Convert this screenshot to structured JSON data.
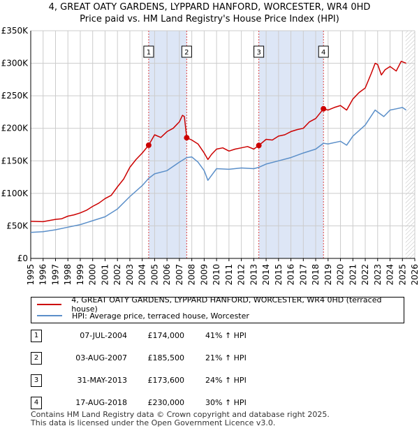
{
  "title_line1": "4, GREAT OATY GARDENS, LYPPARD HANFORD, WORCESTER, WR4 0HD",
  "title_line2": "Price paid vs. HM Land Registry's House Price Index (HPI)",
  "legend": {
    "property_label": "4, GREAT OATY GARDENS, LYPPARD HANFORD, WORCESTER, WR4 0HD (terraced house)",
    "hpi_label": "HPI: Average price, terraced house, Worcester"
  },
  "sales": [
    {
      "num": "1",
      "date": "07-JUL-2004",
      "price": "£174,000",
      "hpi": "41% ↑ HPI"
    },
    {
      "num": "2",
      "date": "03-AUG-2007",
      "price": "£185,500",
      "hpi": "21% ↑ HPI"
    },
    {
      "num": "3",
      "date": "31-MAY-2013",
      "price": "£173,600",
      "hpi": "24% ↑ HPI"
    },
    {
      "num": "4",
      "date": "17-AUG-2018",
      "price": "£230,000",
      "hpi": "30% ↑ HPI"
    }
  ],
  "footer_line1": "Contains HM Land Registry data © Crown copyright and database right 2025.",
  "footer_line2": "This data is licensed under the Open Government Licence v3.0.",
  "chart_data": {
    "type": "line",
    "title": "4, GREAT OATY GARDENS, LYPPARD HANFORD, WORCESTER, WR4 0HD — Price paid vs. HM Land Registry's House Price Index (HPI)",
    "xlabel": "",
    "ylabel": "",
    "xlim": [
      1995,
      2026
    ],
    "ylim": [
      0,
      350000
    ],
    "y_ticks": [
      {
        "value": 0,
        "label": "£0"
      },
      {
        "value": 50000,
        "label": "£50K"
      },
      {
        "value": 100000,
        "label": "£100K"
      },
      {
        "value": 150000,
        "label": "£150K"
      },
      {
        "value": 200000,
        "label": "£200K"
      },
      {
        "value": 250000,
        "label": "£250K"
      },
      {
        "value": 300000,
        "label": "£300K"
      },
      {
        "value": 350000,
        "label": "£350K"
      }
    ],
    "x_ticks": [
      1995,
      1996,
      1997,
      1998,
      1999,
      2000,
      2001,
      2002,
      2003,
      2004,
      2005,
      2006,
      2007,
      2008,
      2009,
      2010,
      2011,
      2012,
      2013,
      2014,
      2015,
      2016,
      2017,
      2018,
      2019,
      2020,
      2021,
      2022,
      2023,
      2024,
      2025,
      2026
    ],
    "grid": true,
    "colors": {
      "property": "#cc0000",
      "hpi": "#5b8fc9",
      "shade": "#dde6f6",
      "marker_line": "#dd4444",
      "axis": "#000000",
      "grid": "#cccccc"
    },
    "shaded_ranges": [
      [
        2004.52,
        2007.59
      ],
      [
        2013.41,
        2018.63
      ]
    ],
    "hatched_from": 2025.25,
    "series": [
      {
        "name": "4, GREAT OATY GARDENS, LYPPARD HANFORD, WORCESTER, WR4 0HD (terraced house)",
        "x": [
          1995.0,
          1996.0,
          1997.0,
          1997.5,
          1998.0,
          1998.5,
          1999.0,
          1999.5,
          2000.0,
          2000.5,
          2001.0,
          2001.5,
          2002.0,
          2002.5,
          2003.0,
          2003.5,
          2004.0,
          2004.52,
          2005.0,
          2005.5,
          2006.0,
          2006.5,
          2007.0,
          2007.25,
          2007.4,
          2007.59,
          2008.0,
          2008.5,
          2009.0,
          2009.3,
          2009.6,
          2010.0,
          2010.5,
          2011.0,
          2011.5,
          2012.0,
          2012.5,
          2013.0,
          2013.41,
          2014.0,
          2014.5,
          2015.0,
          2015.5,
          2016.0,
          2016.5,
          2017.0,
          2017.5,
          2018.0,
          2018.63,
          2019.0,
          2019.5,
          2020.0,
          2020.5,
          2021.0,
          2021.5,
          2022.0,
          2022.5,
          2022.8,
          2023.0,
          2023.3,
          2023.6,
          2024.0,
          2024.5,
          2024.9,
          2025.3
        ],
        "y": [
          57000,
          56500,
          60000,
          61000,
          65000,
          67000,
          70000,
          74000,
          80000,
          85000,
          92000,
          97000,
          110000,
          122000,
          140000,
          152000,
          162000,
          174000,
          190000,
          186000,
          195000,
          200000,
          210000,
          220000,
          218000,
          185500,
          182000,
          176000,
          162000,
          152000,
          160000,
          168000,
          170000,
          165000,
          168000,
          170000,
          172000,
          168000,
          173600,
          183000,
          182000,
          188000,
          190000,
          195000,
          198000,
          200000,
          210000,
          215000,
          230000,
          228000,
          232000,
          235000,
          228000,
          245000,
          255000,
          262000,
          285000,
          300000,
          298000,
          282000,
          290000,
          295000,
          288000,
          303000,
          300000
        ]
      },
      {
        "name": "HPI: Average price, terraced house, Worcester",
        "x": [
          1995.0,
          1996.0,
          1997.0,
          1998.0,
          1999.0,
          2000.0,
          2001.0,
          2002.0,
          2003.0,
          2004.0,
          2004.52,
          2005.0,
          2006.0,
          2007.0,
          2007.59,
          2008.0,
          2008.5,
          2009.0,
          2009.3,
          2010.0,
          2011.0,
          2012.0,
          2013.0,
          2013.41,
          2014.0,
          2015.0,
          2016.0,
          2017.0,
          2018.0,
          2018.63,
          2019.0,
          2020.0,
          2020.5,
          2021.0,
          2022.0,
          2022.8,
          2023.0,
          2023.5,
          2024.0,
          2024.5,
          2025.0,
          2025.3
        ],
        "y": [
          40000,
          41000,
          44000,
          48000,
          52000,
          58000,
          64000,
          76000,
          95000,
          112000,
          123000,
          130000,
          135000,
          148000,
          155000,
          156000,
          148000,
          135000,
          120000,
          138000,
          137000,
          139000,
          138000,
          140000,
          145000,
          150000,
          155000,
          162000,
          168000,
          177000,
          176000,
          180000,
          174000,
          188000,
          205000,
          228000,
          225000,
          218000,
          228000,
          230000,
          232000,
          228000
        ]
      }
    ],
    "sale_markers": [
      {
        "label": "1",
        "x": 2004.52,
        "y": 174000
      },
      {
        "label": "2",
        "x": 2007.59,
        "y": 185500
      },
      {
        "label": "3",
        "x": 2013.41,
        "y": 173600
      },
      {
        "label": "4",
        "x": 2018.63,
        "y": 230000
      }
    ]
  }
}
